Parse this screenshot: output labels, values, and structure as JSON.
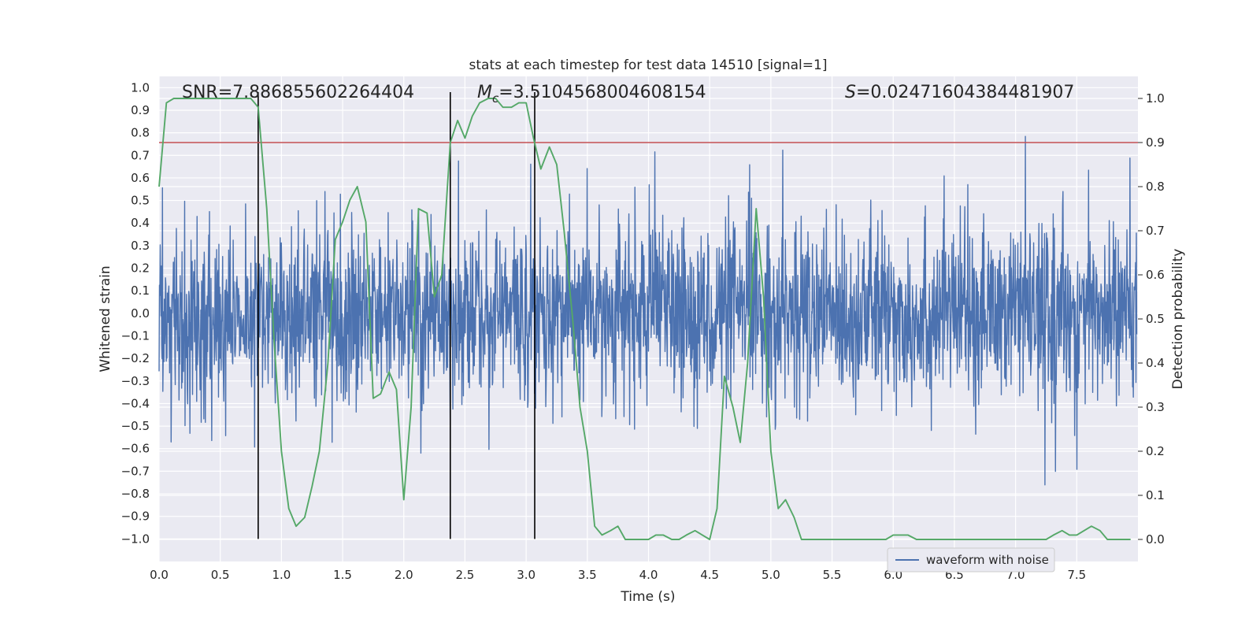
{
  "chart_data": {
    "type": "line",
    "title": "stats at each timestep for test data 14510 [signal=1]",
    "xlabel": "Time (s)",
    "ylabel": "Whitened strain",
    "ylabel_right": "Detection probability",
    "xlim": [
      0.0,
      8.0
    ],
    "ylim": [
      -1.1,
      1.05
    ],
    "ylim_right": [
      -0.05,
      1.05
    ],
    "x_ticks": [
      0.0,
      0.5,
      1.0,
      1.5,
      2.0,
      2.5,
      3.0,
      3.5,
      4.0,
      4.5,
      5.0,
      5.5,
      6.0,
      6.5,
      7.0,
      7.5
    ],
    "x_tick_labels": [
      "0.0",
      "0.5",
      "1.0",
      "1.5",
      "2.0",
      "2.5",
      "3.0",
      "3.5",
      "4.0",
      "4.5",
      "5.0",
      "5.5",
      "6.0",
      "6.5",
      "7.0",
      "7.5"
    ],
    "y_ticks": [
      1.0,
      0.9,
      0.8,
      0.7,
      0.6,
      0.5,
      0.4,
      0.3,
      0.2,
      0.1,
      0.0,
      -0.1,
      -0.2,
      -0.3,
      -0.4,
      -0.5,
      -0.6,
      -0.7,
      -0.8,
      -0.9,
      -1.0
    ],
    "y_tick_labels": [
      "1.0",
      "0.9",
      "0.8",
      "0.7",
      "0.6",
      "0.5",
      "0.4",
      "0.3",
      "0.2",
      "0.1",
      "0.0",
      "−0.1",
      "−0.2",
      "−0.3",
      "−0.4",
      "−0.5",
      "−0.6",
      "−0.7",
      "−0.8",
      "−0.9",
      "−1.0"
    ],
    "y_right_ticks": [
      1.0,
      0.9,
      0.8,
      0.7,
      0.6,
      0.5,
      0.4,
      0.3,
      0.2,
      0.1,
      0.0
    ],
    "y_right_tick_labels": [
      "1.0",
      "0.9",
      "0.8",
      "0.7",
      "0.6",
      "0.5",
      "0.4",
      "0.3",
      "0.2",
      "0.1",
      "0.0"
    ],
    "annotations": {
      "snr": "SNR=7.886855602264404",
      "mc_prefix": "M",
      "mc_sub": "c",
      "mc_value": "=3.5104568004608154",
      "s_prefix": "S",
      "s_value": "=0.02471604384481907"
    },
    "threshold": {
      "value": 0.9,
      "axis": "right",
      "color": "#c44e52"
    },
    "vlines_x": [
      0.81,
      2.38,
      3.07
    ],
    "series": [
      {
        "name": "waveform with noise",
        "axis": "left",
        "color": "#4c72b0",
        "noise_amplitude": 0.4,
        "start": 0.0,
        "end": 7.99
      },
      {
        "name": "Detection probability",
        "axis": "right",
        "color": "#55a868",
        "x": [
          0.0,
          0.06,
          0.12,
          0.19,
          0.25,
          0.31,
          0.38,
          0.44,
          0.5,
          0.56,
          0.62,
          0.69,
          0.75,
          0.81,
          0.88,
          0.94,
          1.0,
          1.06,
          1.12,
          1.19,
          1.25,
          1.31,
          1.38,
          1.44,
          1.5,
          1.56,
          1.62,
          1.69,
          1.75,
          1.81,
          1.88,
          1.94,
          2.0,
          2.06,
          2.12,
          2.19,
          2.25,
          2.31,
          2.38,
          2.44,
          2.5,
          2.56,
          2.62,
          2.69,
          2.75,
          2.81,
          2.88,
          2.94,
          3.0,
          3.06,
          3.12,
          3.19,
          3.25,
          3.31,
          3.38,
          3.44,
          3.5,
          3.56,
          3.62,
          3.69,
          3.75,
          3.81,
          3.88,
          3.94,
          4.0,
          4.06,
          4.12,
          4.19,
          4.25,
          4.31,
          4.38,
          4.44,
          4.5,
          4.56,
          4.62,
          4.69,
          4.75,
          4.81,
          4.88,
          4.94,
          5.0,
          5.06,
          5.12,
          5.19,
          5.25,
          5.31,
          5.38,
          5.44,
          5.5,
          5.56,
          5.62,
          5.69,
          5.75,
          5.81,
          5.88,
          5.94,
          6.0,
          6.06,
          6.12,
          6.19,
          6.25,
          6.31,
          6.38,
          6.44,
          6.5,
          6.56,
          6.62,
          6.69,
          6.75,
          6.81,
          6.88,
          6.94,
          7.0,
          7.06,
          7.12,
          7.19,
          7.25,
          7.31,
          7.38,
          7.44,
          7.5,
          7.56,
          7.62,
          7.69,
          7.75,
          7.81,
          7.88,
          7.94
        ],
        "values": [
          0.8,
          0.99,
          1.0,
          1.0,
          1.0,
          1.0,
          1.0,
          1.0,
          1.0,
          1.0,
          1.0,
          1.0,
          1.0,
          0.98,
          0.75,
          0.45,
          0.2,
          0.07,
          0.03,
          0.05,
          0.12,
          0.2,
          0.4,
          0.68,
          0.72,
          0.77,
          0.8,
          0.72,
          0.32,
          0.33,
          0.38,
          0.34,
          0.09,
          0.3,
          0.75,
          0.74,
          0.55,
          0.6,
          0.9,
          0.95,
          0.91,
          0.96,
          0.99,
          1.0,
          1.0,
          0.98,
          0.98,
          0.99,
          0.99,
          0.91,
          0.84,
          0.89,
          0.85,
          0.7,
          0.5,
          0.3,
          0.2,
          0.03,
          0.01,
          0.02,
          0.03,
          0.0,
          0.0,
          0.0,
          0.0,
          0.01,
          0.01,
          0.0,
          0.0,
          0.01,
          0.02,
          0.01,
          0.0,
          0.07,
          0.37,
          0.3,
          0.22,
          0.4,
          0.75,
          0.55,
          0.2,
          0.07,
          0.09,
          0.05,
          0.0,
          0.0,
          0.0,
          0.0,
          0.0,
          0.0,
          0.0,
          0.0,
          0.0,
          0.0,
          0.0,
          0.0,
          0.01,
          0.01,
          0.01,
          0.0,
          0.0,
          0.0,
          0.0,
          0.0,
          0.0,
          0.0,
          0.0,
          0.0,
          0.0,
          0.0,
          0.0,
          0.0,
          0.0,
          0.0,
          0.0,
          0.0,
          0.0,
          0.01,
          0.02,
          0.01,
          0.01,
          0.02,
          0.03,
          0.02,
          0.0,
          0.0,
          0.0,
          0.0
        ]
      }
    ],
    "legend": {
      "location": "lower-right",
      "entries": [
        "waveform with noise"
      ]
    }
  }
}
